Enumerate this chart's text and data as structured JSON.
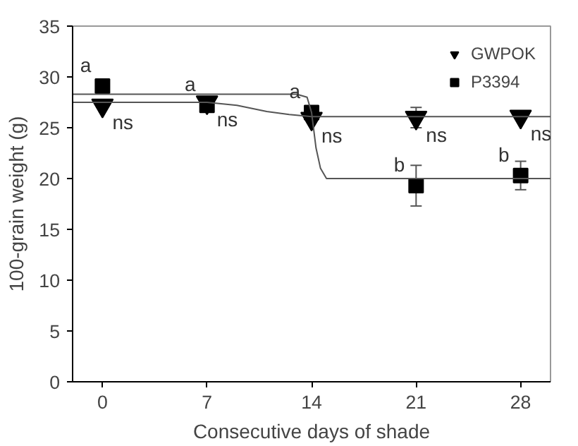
{
  "chart_data": {
    "type": "scatter",
    "xlabel": "Consecutive days of shade",
    "ylabel": "100-grain weight (g)",
    "x": [
      0,
      7,
      14,
      21,
      28
    ],
    "xlim": [
      -2,
      30
    ],
    "xticks": [
      0,
      7,
      14,
      21,
      28
    ],
    "ylim": [
      0,
      35
    ],
    "yticks": [
      0,
      5,
      10,
      15,
      20,
      25,
      30,
      35
    ],
    "grid": false,
    "legend": "top right",
    "series": [
      {
        "name": "GWPOK",
        "color": "#000000",
        "marker": "triangle",
        "values": [
          27.2,
          27.5,
          25.9,
          26.0,
          26.1
        ],
        "errors": [
          null,
          null,
          null,
          1.0,
          null
        ]
      },
      {
        "name": "P3394",
        "color": "#000000",
        "marker": "square",
        "values": [
          29.1,
          27.2,
          26.5,
          19.3,
          20.3
        ],
        "errors": [
          null,
          0.5,
          null,
          2.0,
          1.4
        ]
      },
      {
        "type": "line",
        "color": "#555555",
        "x": [
          -2,
          7,
          9,
          11,
          12.5,
          14,
          30
        ],
        "values": [
          27.5,
          27.5,
          27.2,
          26.6,
          26.3,
          26.1,
          26.1
        ]
      },
      {
        "type": "line",
        "color": "#555555",
        "x": [
          -2,
          13,
          13.7,
          14,
          14.3,
          14.6,
          15,
          30
        ],
        "values": [
          28.3,
          28.3,
          28.0,
          26.5,
          23.0,
          21.0,
          20.0,
          20.0
        ]
      }
    ],
    "annotations": [
      {
        "text": "a",
        "x": 0,
        "y": 29.1
      },
      {
        "text": "ns",
        "x": 0,
        "y": 27.2
      },
      {
        "text": "a",
        "x": 7,
        "y": 27.2
      },
      {
        "text": "ns",
        "x": 7,
        "y": 27.5
      },
      {
        "text": "a",
        "x": 14,
        "y": 26.5
      },
      {
        "text": "ns",
        "x": 14,
        "y": 25.9
      },
      {
        "text": "ns",
        "x": 21,
        "y": 26.0
      },
      {
        "text": "b",
        "x": 21,
        "y": 19.3
      },
      {
        "text": "ns",
        "x": 28,
        "y": 26.1
      },
      {
        "text": "b",
        "x": 28,
        "y": 20.3
      }
    ]
  }
}
